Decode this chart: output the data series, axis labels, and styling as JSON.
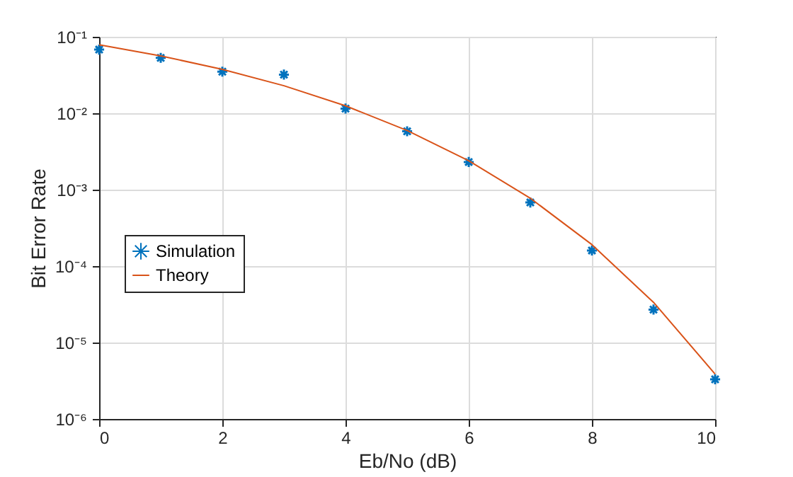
{
  "chart_data": {
    "type": "line",
    "xlabel": "Eb/No (dB)",
    "ylabel": "Bit Error Rate",
    "log": "y",
    "grid": true,
    "legend": "center left",
    "x": [
      0,
      1,
      2,
      3,
      4,
      5,
      6,
      7,
      8,
      9,
      10
    ],
    "xlim": [
      0,
      10
    ],
    "xticks": [
      0,
      2,
      4,
      6,
      8,
      10
    ],
    "ylim": [
      1e-06,
      0.1
    ],
    "yticks": [
      {
        "value": 1e-06,
        "label": "10⁻⁶"
      },
      {
        "value": 1e-05,
        "label": "10⁻⁵"
      },
      {
        "value": 0.0001,
        "label": "10⁻⁴"
      },
      {
        "value": 0.001,
        "label": "10⁻³"
      },
      {
        "value": 0.01,
        "label": "10⁻²"
      },
      {
        "value": 0.1,
        "label": "10⁻¹"
      }
    ],
    "series": [
      {
        "name": "Simulation",
        "type": "scatter",
        "marker": "cross",
        "color": "#0072bd",
        "values": [
          0.068,
          0.053,
          0.035,
          0.032,
          0.0115,
          0.0058,
          0.0023,
          0.00068,
          0.00016,
          2.7e-05,
          3.3e-06
        ]
      },
      {
        "name": "Theory",
        "marker": "none",
        "line_style": "solid",
        "color": "#d95319",
        "values": [
          0.0786,
          0.0563,
          0.0375,
          0.0229,
          0.0125,
          0.00595,
          0.00239,
          0.000773,
          0.000191,
          3.36e-05,
          3.87e-06
        ]
      }
    ]
  }
}
